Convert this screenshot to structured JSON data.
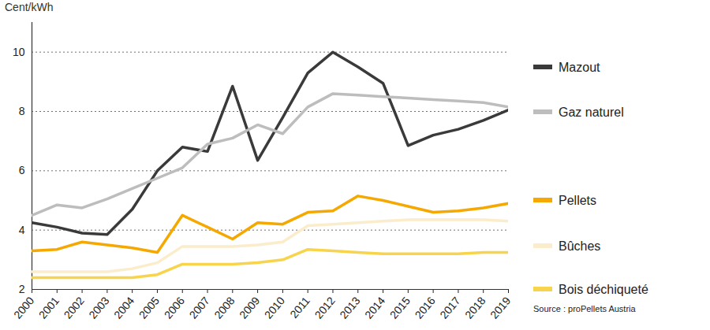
{
  "chart_data": {
    "type": "line",
    "y_label": "Cent/kWh",
    "source": "Source : proPellets Austria",
    "x": [
      2000,
      2001,
      2002,
      2003,
      2004,
      2005,
      2006,
      2007,
      2008,
      2009,
      2010,
      2011,
      2012,
      2013,
      2014,
      2015,
      2016,
      2017,
      2018,
      2019
    ],
    "xlim": [
      2000,
      2019
    ],
    "xticks": [
      2000,
      2001,
      2002,
      2003,
      2004,
      2005,
      2006,
      2007,
      2008,
      2009,
      2010,
      2011,
      2012,
      2013,
      2014,
      2015,
      2016,
      2017,
      2018,
      2019
    ],
    "ylim": [
      2,
      11
    ],
    "yticks": [
      2,
      4,
      6,
      8,
      10
    ],
    "grid": true,
    "legend": "right",
    "series": [
      {
        "name": "Mazout",
        "color": "#3a3a3a",
        "values": [
          4.25,
          4.1,
          3.9,
          3.85,
          4.7,
          6.0,
          6.8,
          6.65,
          8.85,
          6.35,
          7.8,
          9.3,
          10.0,
          9.5,
          8.95,
          6.85,
          7.2,
          7.4,
          7.7,
          8.05
        ]
      },
      {
        "name": "Gaz naturel",
        "color": "#bdbdbd",
        "values": [
          4.5,
          4.85,
          4.75,
          5.05,
          5.4,
          5.75,
          6.1,
          6.9,
          7.1,
          7.55,
          7.25,
          8.15,
          8.6,
          8.55,
          8.5,
          8.45,
          8.4,
          8.35,
          8.3,
          8.15
        ]
      },
      {
        "name": "Pellets",
        "color": "#f5a800",
        "values": [
          3.3,
          3.35,
          3.6,
          3.5,
          3.4,
          3.25,
          4.5,
          4.1,
          3.7,
          4.25,
          4.2,
          4.6,
          4.65,
          5.15,
          5.0,
          4.8,
          4.6,
          4.65,
          4.75,
          4.9
        ]
      },
      {
        "name": "Bûches",
        "color": "#fbeccb",
        "values": [
          2.6,
          2.6,
          2.6,
          2.6,
          2.7,
          2.9,
          3.45,
          3.45,
          3.45,
          3.5,
          3.6,
          4.15,
          4.2,
          4.25,
          4.3,
          4.35,
          4.35,
          4.35,
          4.35,
          4.3
        ]
      },
      {
        "name": "Bois déchiqueté",
        "color": "#f7d44c",
        "values": [
          2.4,
          2.4,
          2.4,
          2.4,
          2.4,
          2.5,
          2.85,
          2.85,
          2.85,
          2.9,
          3.0,
          3.35,
          3.3,
          3.25,
          3.2,
          3.2,
          3.2,
          3.2,
          3.25,
          3.25
        ]
      }
    ]
  }
}
